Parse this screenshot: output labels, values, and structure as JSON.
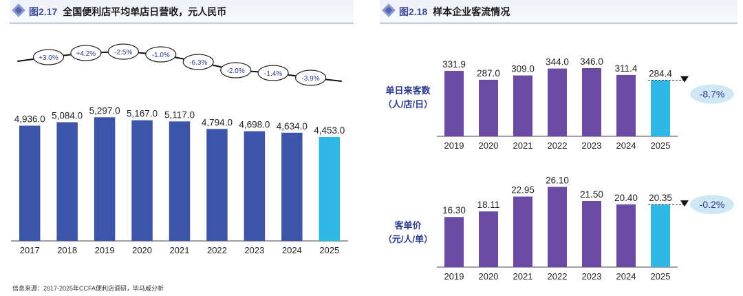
{
  "left_panel": {
    "figure_number": "图2.17",
    "title": "全国便利店平均单店日营收，元人民币"
  },
  "right_panel": {
    "figure_number": "图2.18",
    "title": "样本企业客流情况",
    "top_ylabel": "单日来客数\n（人/店/日）",
    "bottom_ylabel": "客单价\n（元/人/单）"
  },
  "source_note": "信息来源：2017-2025年CCFA便利店调研，毕马威分析",
  "colors": {
    "bar_main": "#3c55a8",
    "bar_highlight": "#2fb8e6",
    "bar_purple": "#6a4aa5",
    "change_bubble": "#cfe8f6",
    "header_accent": "#3e4a9a"
  },
  "chart_data": [
    {
      "type": "bar",
      "categories": [
        "2017",
        "2018",
        "2019",
        "2020",
        "2021",
        "2022",
        "2023",
        "2024",
        "2025"
      ],
      "values": [
        4936.0,
        5084.0,
        5297.0,
        5167.0,
        5117.0,
        4794.0,
        4698.0,
        4634.0,
        4453.0
      ],
      "value_labels": [
        "4,936.0",
        "5,084.0",
        "5,297.0",
        "5,167.0",
        "5,117.0",
        "4,794.0",
        "4,698.0",
        "4,634.0",
        "4,453.0"
      ],
      "yoy_changes": [
        "+3.0%",
        "+4.2%",
        "-2.5%",
        "-1.0%",
        "-6.3%",
        "-2.0%",
        "-1.4%",
        "-3.9%"
      ],
      "highlight_index": 8,
      "ylim": [
        0,
        5600
      ]
    },
    {
      "type": "bar",
      "categories": [
        "2019",
        "2020",
        "2021",
        "2022",
        "2023",
        "2024",
        "2025"
      ],
      "values": [
        331.9,
        287.0,
        309.0,
        344.0,
        346.0,
        311.4,
        284.4
      ],
      "value_labels": [
        "331.9",
        "287.0",
        "309.0",
        "344.0",
        "346.0",
        "311.4",
        "284.4"
      ],
      "change_callout": "-8.7%",
      "highlight_index": 6,
      "ylim": [
        0,
        360
      ]
    },
    {
      "type": "bar",
      "categories": [
        "2019",
        "2020",
        "2021",
        "2022",
        "2023",
        "2024",
        "2025"
      ],
      "values": [
        16.3,
        18.11,
        22.95,
        26.1,
        21.5,
        20.4,
        20.35
      ],
      "value_labels": [
        "16.30",
        "18.11",
        "22.95",
        "26.10",
        "21.50",
        "20.40",
        "20.35"
      ],
      "change_callout": "-0.2%",
      "highlight_index": 6,
      "ylim": [
        0,
        28
      ]
    }
  ]
}
